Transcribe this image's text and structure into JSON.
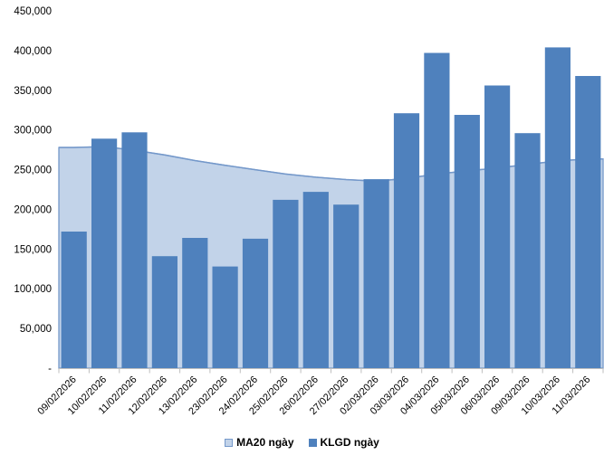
{
  "chart_data": {
    "type": "bar",
    "title": "",
    "xlabel": "",
    "ylabel": "",
    "categories": [
      "09/02/2026",
      "10/02/2026",
      "11/02/2026",
      "12/02/2026",
      "13/02/2026",
      "23/02/2026",
      "24/02/2026",
      "25/02/2026",
      "26/02/2026",
      "27/02/2026",
      "02/03/2026",
      "03/03/2026",
      "04/03/2026",
      "05/03/2026",
      "06/03/2026",
      "09/03/2026",
      "10/03/2026",
      "11/03/2026"
    ],
    "series": [
      {
        "name": "MA20 ngày",
        "type": "area",
        "values": [
          278000,
          279000,
          274500,
          268500,
          261500,
          255500,
          250000,
          244500,
          240500,
          237500,
          235500,
          239000,
          244500,
          248500,
          252000,
          256500,
          261000,
          263500
        ]
      },
      {
        "name": "KLGD ngày",
        "type": "bar",
        "values": [
          172000,
          289000,
          297000,
          141000,
          164000,
          128000,
          163000,
          212000,
          222000,
          206000,
          238000,
          321000,
          397000,
          319000,
          356000,
          296000,
          404000,
          368000
        ]
      }
    ],
    "ylim": [
      0,
      450000
    ],
    "ytick_step": 50000,
    "ytick_labels": [
      "-",
      "50,000",
      "100,000",
      "150,000",
      "200,000",
      "250,000",
      "300,000",
      "350,000",
      "400,000",
      "450,000"
    ],
    "grid": false,
    "legend_position": "bottom-center",
    "colors": {
      "bar": "#4F81BD",
      "area_fill": "#C2D3E9",
      "area_line": "#7498CA",
      "axis": "#BFBFBF",
      "text": "#000000",
      "background": "#FFFFFF"
    }
  },
  "legend": {
    "items": [
      {
        "label": "MA20 ngày"
      },
      {
        "label": "KLGD ngày"
      }
    ]
  }
}
